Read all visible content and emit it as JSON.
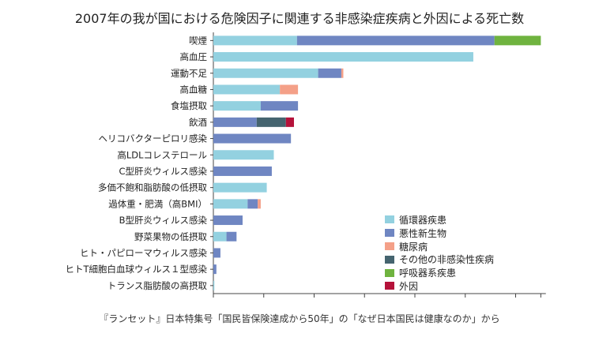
{
  "chart_data": {
    "type": "bar",
    "orientation": "horizontal",
    "stacked": true,
    "title": "2007年の我が国における危険因子に関連する非感染症疾病と外因による死亡数",
    "categories": [
      "喫煙",
      "高血圧",
      "運動不足",
      "高血糖",
      "食塩摂取",
      "飲酒",
      "ヘリコバクターピロリ感染",
      "高LDLコレステロール",
      "C型肝炎ウィルス感染",
      "多価不飽和脂肪酸の低摂取",
      "過体重・肥満（高BMI）",
      "B型肝炎ウィルス感染",
      "野菜果物の低摂取",
      "ヒト・パピローマウィルス感染",
      "ヒトT細胞白血球ウィルス１型感染",
      "トランス脂肪酸の高摂取"
    ],
    "series": [
      {
        "name": "循環器疾患",
        "color": "#93d1e0",
        "values": [
          8.3,
          25.8,
          10.4,
          6.6,
          4.7,
          0,
          0,
          6.0,
          0,
          5.3,
          3.4,
          0,
          1.3,
          0,
          0,
          0.1
        ]
      },
      {
        "name": "悪性新生物",
        "color": "#6f86c2",
        "values": [
          19.6,
          0,
          2.3,
          0,
          3.7,
          4.3,
          7.7,
          0,
          5.8,
          0,
          1.0,
          2.9,
          1.0,
          0.7,
          0.3,
          0
        ]
      },
      {
        "name": "糖尿病",
        "color": "#f4a088",
        "values": [
          0,
          0,
          0.2,
          1.8,
          0,
          0,
          0,
          0,
          0,
          0,
          0.3,
          0,
          0,
          0,
          0,
          0
        ]
      },
      {
        "name": "その他の非感染性疾病",
        "color": "#45646f",
        "values": [
          0,
          0,
          0,
          0,
          0,
          2.9,
          0,
          0,
          0,
          0,
          0,
          0,
          0,
          0,
          0,
          0
        ]
      },
      {
        "name": "呼吸器系疾患",
        "color": "#6fb33f",
        "values": [
          4.6,
          0,
          0,
          0,
          0,
          0,
          0,
          0,
          0,
          0,
          0,
          0,
          0,
          0,
          0,
          0
        ]
      },
      {
        "name": "外因",
        "color": "#b5123a",
        "values": [
          0,
          0,
          0,
          0,
          0,
          0.8,
          0,
          0,
          0,
          0,
          0,
          0,
          0,
          0,
          0,
          0
        ]
      }
    ],
    "xlim": [
      0,
      33
    ],
    "xticks": [
      "0",
      "10",
      "20",
      "30"
    ],
    "xlabel": "",
    "ylabel": "",
    "legend_position": "bottom-right",
    "grid": false
  },
  "source": "『ランセット』日本特集号「国民皆保険達成から50年」の「なぜ日本国民は健康なのか」から"
}
